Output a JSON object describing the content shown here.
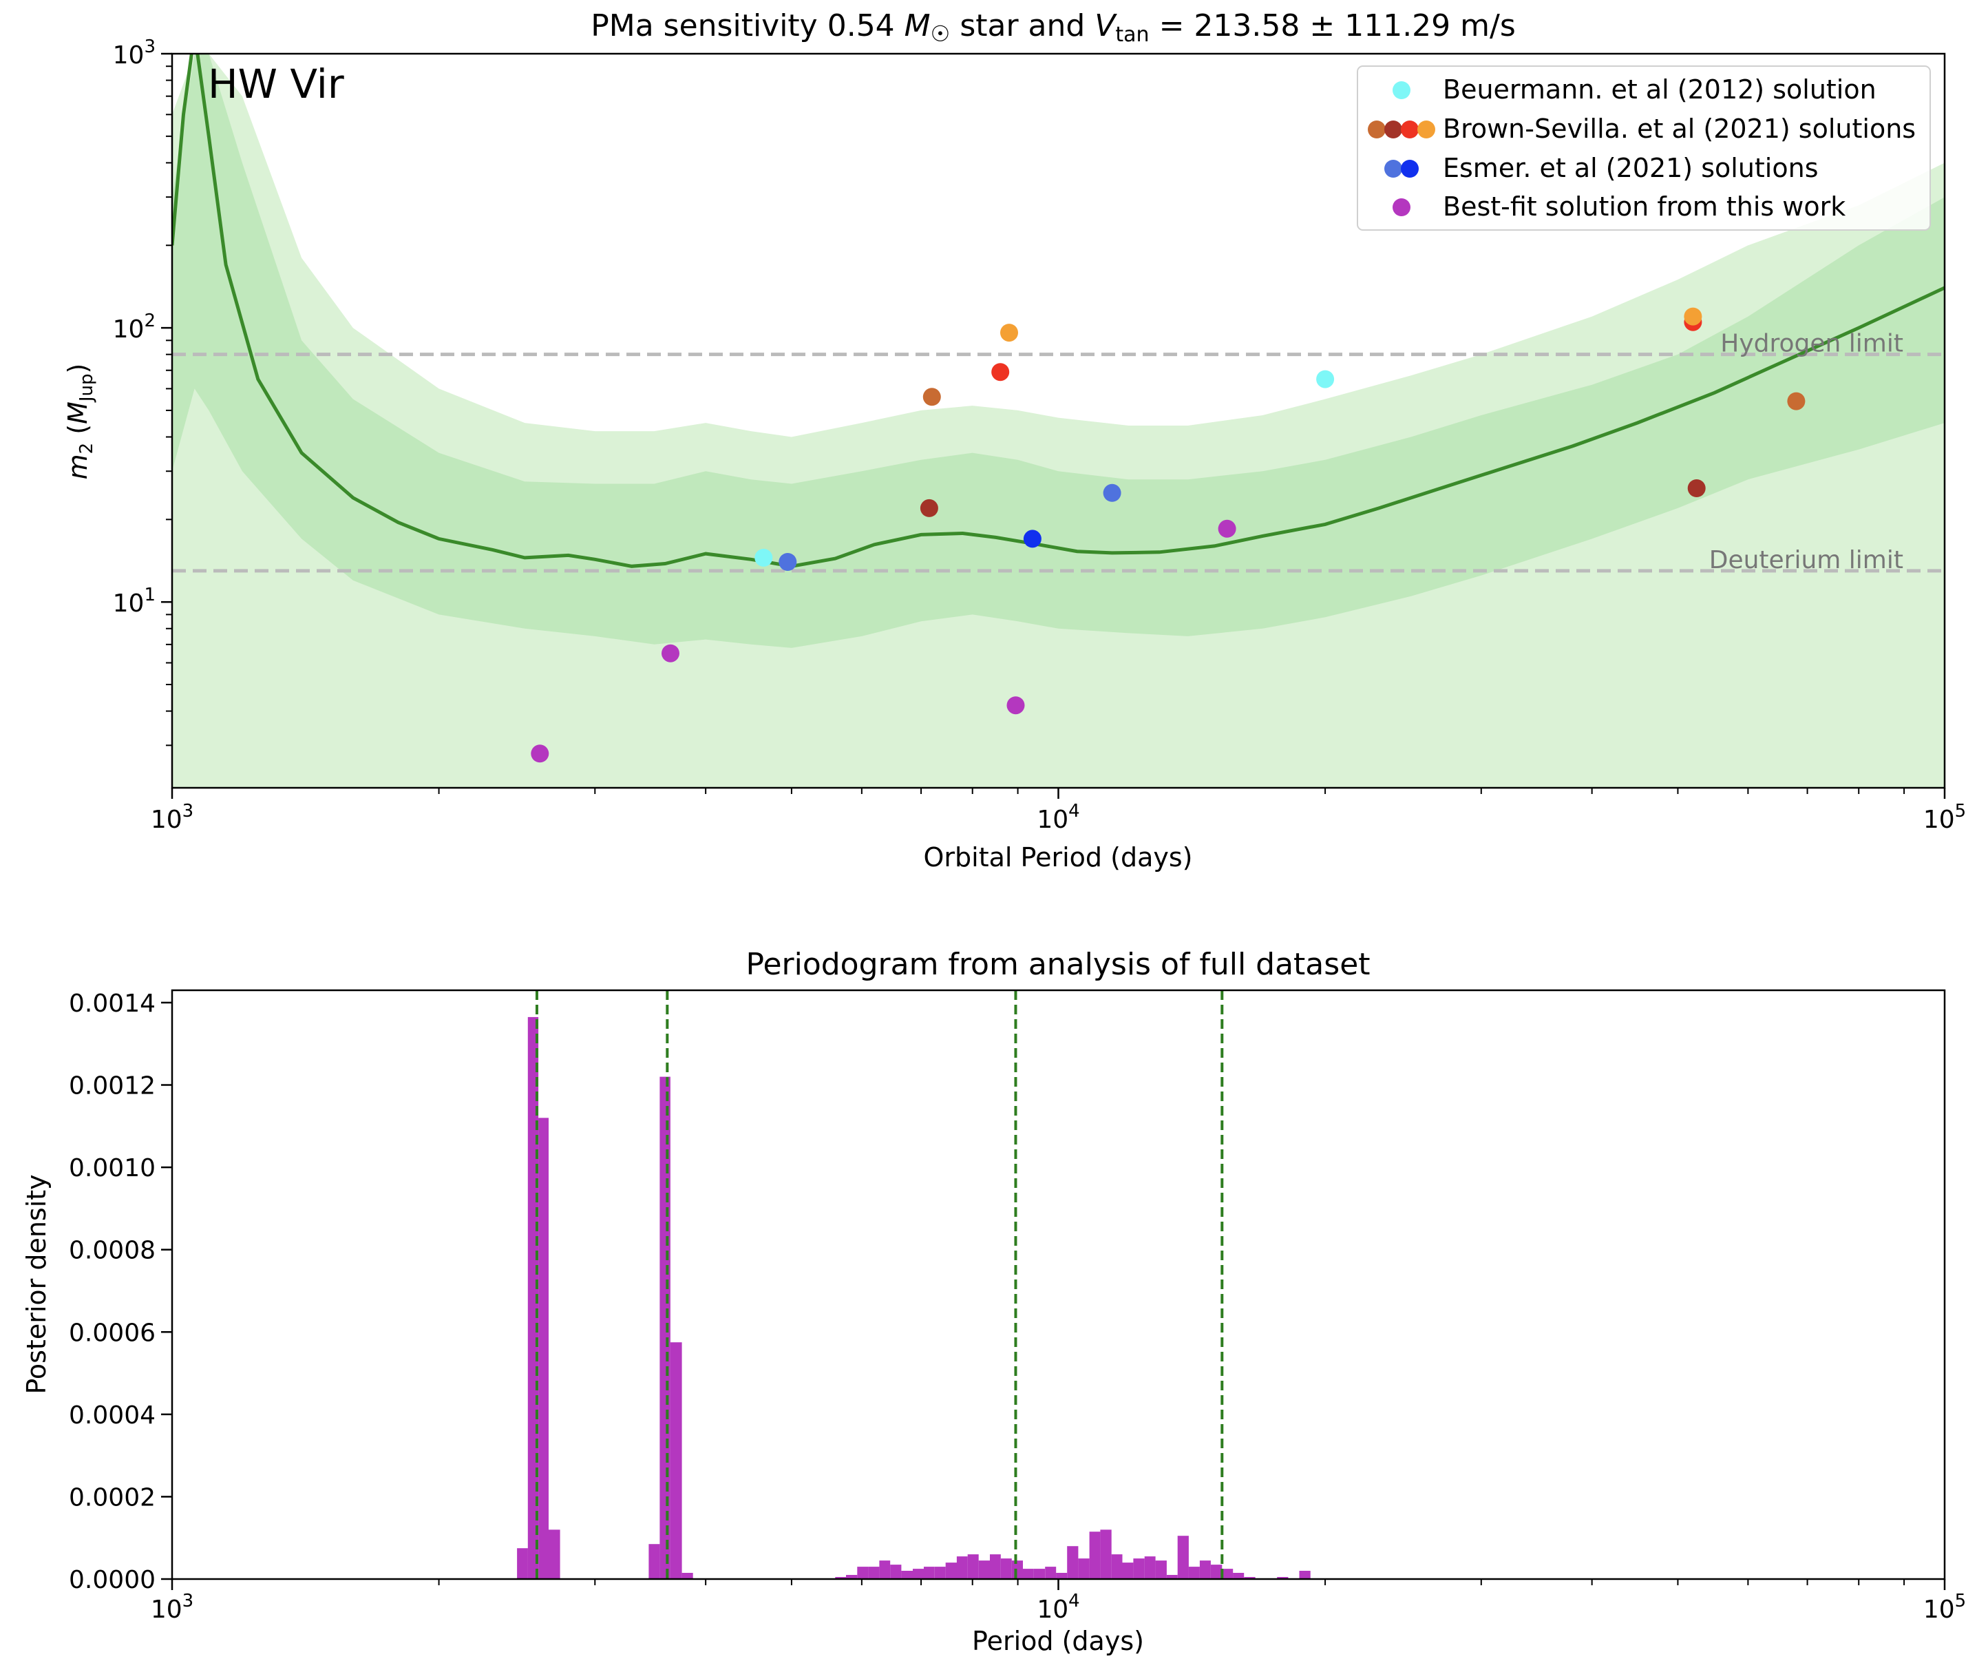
{
  "chart_data": [
    {
      "type": "line",
      "title_parts": {
        "pre": "PMa sensitivity 0.54 ",
        "M": "M",
        "sun": "☉",
        "mid": " star and ",
        "V": "V",
        "tan": "tan",
        "eq": " = 213.58 ± 111.29 m/s"
      },
      "star_label": "HW Vir",
      "xlabel": "Orbital Period (days)",
      "ylabel_parts": {
        "m": "m",
        "sub2": "2",
        "open": " (",
        "M": "M",
        "sub": "Jup",
        "close": ")"
      },
      "xscale": "log",
      "yscale": "log",
      "xlim": [
        1000,
        100000
      ],
      "ylim": [
        2.1,
        1000
      ],
      "xticks": [
        {
          "value": 1000,
          "base": "10",
          "exp": "3"
        },
        {
          "value": 10000,
          "base": "10",
          "exp": "4"
        },
        {
          "value": 100000,
          "base": "10",
          "exp": "5"
        }
      ],
      "yticks": [
        {
          "value": 10,
          "base": "10",
          "exp": "1"
        },
        {
          "value": 100,
          "base": "10",
          "exp": "2"
        },
        {
          "value": 1000,
          "base": "10",
          "exp": "3"
        }
      ],
      "limits": [
        {
          "label": "Hydrogen limit",
          "value": 80
        },
        {
          "label": "Deuterium limit",
          "value": 13
        }
      ],
      "sensitivity_curve": {
        "color": "#3a8a2a",
        "x": [
          1000,
          1030,
          1060,
          1100,
          1150,
          1250,
          1400,
          1600,
          1800,
          2000,
          2300,
          2500,
          2800,
          3000,
          3300,
          3600,
          4000,
          4500,
          5000,
          5600,
          6200,
          7000,
          7800,
          8500,
          9500,
          10500,
          11500,
          13000,
          15000,
          17000,
          20000,
          23000,
          27000,
          32000,
          38000,
          45000,
          55000,
          65000,
          80000,
          100000
        ],
        "y": [
          200,
          600,
          1200,
          500,
          170,
          65,
          35,
          24,
          19.5,
          17,
          15.5,
          14.5,
          14.8,
          14.3,
          13.5,
          13.8,
          15,
          14.3,
          13.5,
          14.4,
          16.2,
          17.6,
          17.8,
          17.2,
          16.2,
          15.3,
          15.1,
          15.2,
          16,
          17.4,
          19.2,
          22,
          26,
          31,
          37,
          45,
          58,
          74,
          100,
          140
        ]
      },
      "band_inner": {
        "color": "#c0e8bc",
        "x": [
          1000,
          1060,
          1100,
          1200,
          1400,
          1600,
          2000,
          2500,
          3000,
          3500,
          4000,
          4500,
          5000,
          6000,
          7000,
          8000,
          9000,
          10000,
          12000,
          14000,
          17000,
          20000,
          25000,
          30000,
          40000,
          50000,
          60000,
          80000,
          100000
        ],
        "upper": [
          300,
          1000,
          1000,
          400,
          90,
          55,
          35,
          27.5,
          27,
          27,
          30,
          28,
          27,
          30,
          33,
          35,
          33,
          30,
          28,
          28,
          30,
          33,
          40,
          48,
          62,
          80,
          110,
          200,
          300
        ],
        "lower": [
          30,
          60,
          50,
          30,
          17,
          12,
          9,
          8,
          7.5,
          7,
          7.3,
          7,
          6.8,
          7.5,
          8.5,
          9,
          8.5,
          8,
          7.7,
          7.5,
          8,
          8.8,
          10.5,
          12.5,
          17,
          22,
          28,
          36,
          45
        ]
      },
      "band_outer": {
        "color": "#dbf2d6",
        "x": [
          1000,
          1060,
          1100,
          1200,
          1400,
          1600,
          2000,
          2500,
          3000,
          3500,
          4000,
          4500,
          5000,
          6000,
          7000,
          8000,
          9000,
          10000,
          12000,
          14000,
          17000,
          20000,
          25000,
          30000,
          40000,
          50000,
          60000,
          80000,
          100000
        ],
        "upper": [
          600,
          1000,
          1000,
          700,
          180,
          100,
          60,
          45,
          42,
          42,
          45,
          42,
          40,
          45,
          50,
          52,
          50,
          47,
          44,
          44,
          48,
          55,
          67,
          80,
          110,
          150,
          200,
          280,
          400
        ],
        "lower": [
          2.1,
          2.1,
          2.1,
          2.1,
          2.1,
          2.1,
          2.1,
          2.1,
          2.1,
          2.1,
          2.1,
          2.1,
          2.1,
          2.1,
          2.1,
          2.1,
          2.1,
          2.1,
          2.1,
          2.1,
          2.1,
          2.1,
          2.1,
          2.1,
          2.1,
          2.1,
          2.1,
          2.1,
          2.1
        ]
      },
      "series": [
        {
          "name": "Beuermann. et al (2012) solution",
          "colors": [
            "#7ef7f7"
          ],
          "points": [
            {
              "x": 4650,
              "y": 14.5,
              "color": "#7ef7f7"
            },
            {
              "x": 20000,
              "y": 65,
              "color": "#7ef7f7"
            }
          ]
        },
        {
          "name": "Brown-Sevilla. et al (2021) solutions",
          "colors": [
            "#c86b32",
            "#a33328",
            "#ee3322",
            "#f4a034"
          ],
          "points": [
            {
              "x": 7200,
              "y": 56,
              "color": "#c86b32"
            },
            {
              "x": 7150,
              "y": 22,
              "color": "#a33328"
            },
            {
              "x": 8600,
              "y": 69,
              "color": "#ee3322"
            },
            {
              "x": 8800,
              "y": 96,
              "color": "#f4a034"
            },
            {
              "x": 52000,
              "y": 105,
              "color": "#ee3322"
            },
            {
              "x": 52000,
              "y": 110,
              "color": "#f4a034"
            },
            {
              "x": 52500,
              "y": 26,
              "color": "#a33328"
            },
            {
              "x": 68000,
              "y": 54,
              "color": "#c86b32"
            }
          ]
        },
        {
          "name": "Esmer. et al (2021) solutions",
          "colors": [
            "#4f72de",
            "#1130ee"
          ],
          "points": [
            {
              "x": 4950,
              "y": 14,
              "color": "#4f72de"
            },
            {
              "x": 9350,
              "y": 17,
              "color": "#1130ee"
            },
            {
              "x": 11500,
              "y": 25,
              "color": "#4f72de"
            }
          ]
        },
        {
          "name": "Best-fit solution from this work",
          "colors": [
            "#b437bf"
          ],
          "points": [
            {
              "x": 2600,
              "y": 2.8,
              "color": "#b437bf"
            },
            {
              "x": 3650,
              "y": 6.5,
              "color": "#b437bf"
            },
            {
              "x": 8950,
              "y": 4.2,
              "color": "#b437bf"
            },
            {
              "x": 15500,
              "y": 18.5,
              "color": "#b437bf"
            }
          ]
        }
      ],
      "legend_position": "top-right",
      "grid": false
    },
    {
      "type": "bar",
      "title": "Periodogram from analysis of full dataset",
      "xlabel": "Period (days)",
      "ylabel": "Posterior density",
      "xscale": "log",
      "xlim": [
        1000,
        100000
      ],
      "ylim": [
        0,
        0.00143
      ],
      "bar_color": "#b437bf",
      "xticks": [
        {
          "value": 1000,
          "base": "10",
          "exp": "3"
        },
        {
          "value": 10000,
          "base": "10",
          "exp": "4"
        },
        {
          "value": 100000,
          "base": "10",
          "exp": "5"
        }
      ],
      "yticks": [
        {
          "value": 0,
          "label": "0.0000"
        },
        {
          "value": 0.0002,
          "label": "0.0002"
        },
        {
          "value": 0.0004,
          "label": "0.0004"
        },
        {
          "value": 0.0006,
          "label": "0.0006"
        },
        {
          "value": 0.0008,
          "label": "0.0008"
        },
        {
          "value": 0.001,
          "label": "0.0010"
        },
        {
          "value": 0.0012,
          "label": "0.0012"
        },
        {
          "value": 0.0014,
          "label": "0.0014"
        }
      ],
      "bin_edges": [
        2450,
        2520,
        2590,
        2660,
        2740
      ],
      "bin_values": [
        7.5e-05,
        0.001365,
        0.00112,
        0.00012
      ],
      "bins": [
        {
          "x0": 2450,
          "x1": 2520,
          "value": 7.5e-05
        },
        {
          "x0": 2520,
          "x1": 2590,
          "value": 0.001365
        },
        {
          "x0": 2590,
          "x1": 2660,
          "value": 0.00112
        },
        {
          "x0": 2660,
          "x1": 2740,
          "value": 0.00012
        },
        {
          "x0": 3450,
          "x1": 3550,
          "value": 8.5e-05
        },
        {
          "x0": 3550,
          "x1": 3650,
          "value": 0.00122
        },
        {
          "x0": 3650,
          "x1": 3760,
          "value": 0.000575
        },
        {
          "x0": 3760,
          "x1": 3870,
          "value": 1.5e-05
        },
        {
          "x0": 5600,
          "x1": 5760,
          "value": 5e-06
        },
        {
          "x0": 5760,
          "x1": 5930,
          "value": 1e-05
        },
        {
          "x0": 5930,
          "x1": 6100,
          "value": 3e-05
        },
        {
          "x0": 6100,
          "x1": 6280,
          "value": 3e-05
        },
        {
          "x0": 6280,
          "x1": 6460,
          "value": 4.5e-05
        },
        {
          "x0": 6460,
          "x1": 6650,
          "value": 3.5e-05
        },
        {
          "x0": 6650,
          "x1": 6850,
          "value": 2e-05
        },
        {
          "x0": 6850,
          "x1": 7050,
          "value": 2.5e-05
        },
        {
          "x0": 7050,
          "x1": 7250,
          "value": 3e-05
        },
        {
          "x0": 7250,
          "x1": 7460,
          "value": 3e-05
        },
        {
          "x0": 7460,
          "x1": 7680,
          "value": 4e-05
        },
        {
          "x0": 7680,
          "x1": 7900,
          "value": 5.5e-05
        },
        {
          "x0": 7900,
          "x1": 8130,
          "value": 6e-05
        },
        {
          "x0": 8130,
          "x1": 8370,
          "value": 4.5e-05
        },
        {
          "x0": 8370,
          "x1": 8610,
          "value": 6e-05
        },
        {
          "x0": 8610,
          "x1": 8860,
          "value": 5e-05
        },
        {
          "x0": 8860,
          "x1": 9120,
          "value": 4.5e-05
        },
        {
          "x0": 9120,
          "x1": 9380,
          "value": 2.5e-05
        },
        {
          "x0": 9380,
          "x1": 9660,
          "value": 2.5e-05
        },
        {
          "x0": 9660,
          "x1": 9940,
          "value": 3e-05
        },
        {
          "x0": 9940,
          "x1": 10230,
          "value": 1.5e-05
        },
        {
          "x0": 10230,
          "x1": 10530,
          "value": 8e-05
        },
        {
          "x0": 10530,
          "x1": 10840,
          "value": 5e-05
        },
        {
          "x0": 10840,
          "x1": 11150,
          "value": 0.000115
        },
        {
          "x0": 11150,
          "x1": 11480,
          "value": 0.00012
        },
        {
          "x0": 11480,
          "x1": 11810,
          "value": 6e-05
        },
        {
          "x0": 11810,
          "x1": 12150,
          "value": 4e-05
        },
        {
          "x0": 12150,
          "x1": 12510,
          "value": 5e-05
        },
        {
          "x0": 12510,
          "x1": 12870,
          "value": 5.5e-05
        },
        {
          "x0": 12870,
          "x1": 13250,
          "value": 4.5e-05
        },
        {
          "x0": 13250,
          "x1": 13630,
          "value": 1e-05
        },
        {
          "x0": 13630,
          "x1": 14030,
          "value": 0.000105
        },
        {
          "x0": 14030,
          "x1": 14440,
          "value": 3e-05
        },
        {
          "x0": 14440,
          "x1": 14860,
          "value": 4.5e-05
        },
        {
          "x0": 14860,
          "x1": 15300,
          "value": 3.5e-05
        },
        {
          "x0": 15300,
          "x1": 15740,
          "value": 2.5e-05
        },
        {
          "x0": 15740,
          "x1": 16200,
          "value": 1.5e-05
        },
        {
          "x0": 16200,
          "x1": 16680,
          "value": 5e-06
        },
        {
          "x0": 17650,
          "x1": 18170,
          "value": 5e-06
        },
        {
          "x0": 18700,
          "x1": 19250,
          "value": 2e-05
        }
      ],
      "vlines": [
        2580,
        3620,
        8950,
        15300
      ],
      "vline_color": "#2e7d1f",
      "grid": false
    }
  ]
}
